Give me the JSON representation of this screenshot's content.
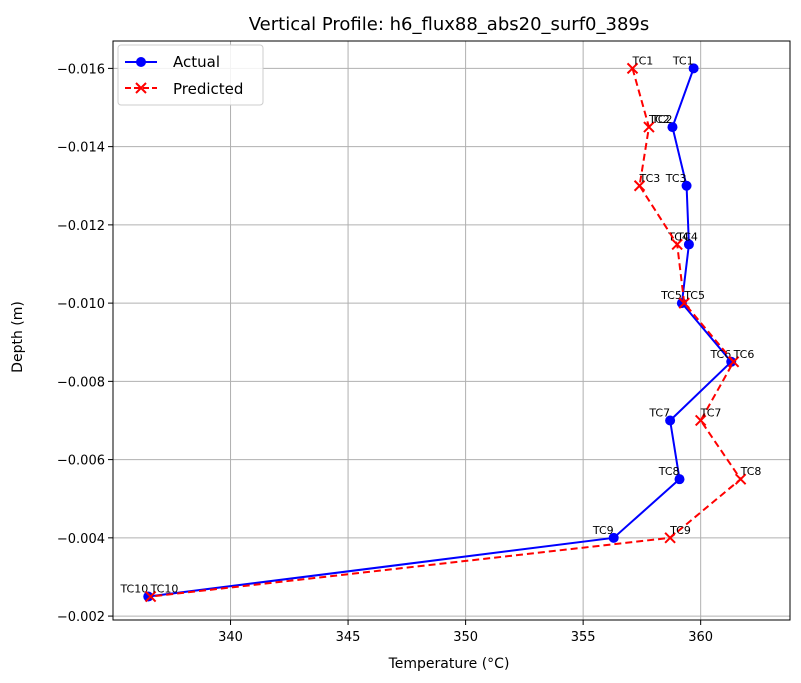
{
  "chart_data": {
    "type": "line",
    "title": "Vertical Profile: h6_flux88_abs20_surf0_389s",
    "xlabel": "Temperature (°C)",
    "ylabel": "Depth (m)",
    "xlim": [
      335.0,
      363.8
    ],
    "ylim": [
      -0.0019,
      -0.0167
    ],
    "y_inverted": true,
    "grid": true,
    "legend_position": "upper left",
    "x_ticks": [
      340,
      345,
      350,
      355,
      360
    ],
    "x_tick_labels": [
      "340",
      "345",
      "350",
      "355",
      "360"
    ],
    "y_ticks": [
      -0.016,
      -0.014,
      -0.012,
      -0.01,
      -0.008,
      -0.006,
      -0.004,
      -0.002
    ],
    "y_tick_labels": [
      "−0.016",
      "−0.014",
      "−0.012",
      "−0.010",
      "−0.008",
      "−0.006",
      "−0.004",
      "−0.002"
    ],
    "point_labels": [
      "TC1",
      "TC2",
      "TC3",
      "TC4",
      "TC5",
      "TC6",
      "TC7",
      "TC8",
      "TC9",
      "TC10"
    ],
    "series": [
      {
        "name": "Actual",
        "color": "#0000ff",
        "marker": "circle",
        "line_style": "solid",
        "x": [
          359.7,
          358.8,
          359.4,
          359.5,
          359.2,
          361.3,
          358.7,
          359.1,
          356.3,
          336.5
        ],
        "y": [
          -0.016,
          -0.0145,
          -0.013,
          -0.0115,
          -0.01,
          -0.0085,
          -0.007,
          -0.0055,
          -0.004,
          -0.0025
        ]
      },
      {
        "name": "Predicted",
        "color": "#ff0000",
        "marker": "x",
        "line_style": "dashed",
        "x": [
          357.1,
          357.8,
          357.4,
          359.0,
          359.3,
          361.4,
          360.0,
          361.7,
          358.7,
          336.6
        ],
        "y": [
          -0.016,
          -0.0145,
          -0.013,
          -0.0115,
          -0.01,
          -0.0085,
          -0.007,
          -0.0055,
          -0.004,
          -0.0025
        ]
      }
    ]
  }
}
